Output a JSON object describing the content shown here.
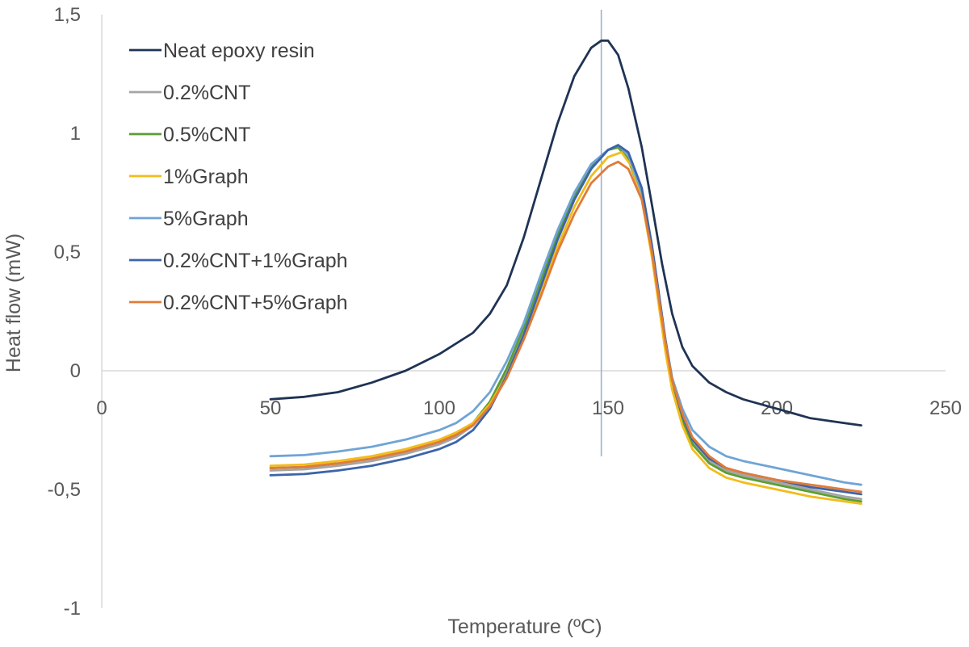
{
  "chart_data": {
    "type": "line",
    "title": "",
    "xlabel": "Temperature (ºC)",
    "ylabel": "Heat flow (mW)",
    "xlim": [
      0,
      250
    ],
    "ylim": [
      -1,
      1.5
    ],
    "x_ticks": [
      0,
      50,
      100,
      150,
      200,
      250
    ],
    "x_tick_labels": [
      "0",
      "50",
      "100",
      "150",
      "200",
      "250"
    ],
    "y_ticks": [
      1.5,
      1,
      0.5,
      0,
      -0.5,
      -1
    ],
    "y_tick_labels": [
      "1,5",
      "1",
      "0,5",
      "0",
      "-0,5",
      "-1"
    ],
    "grid": false,
    "legend_position": "top-left",
    "reference_line_x": 148,
    "series": [
      {
        "name": "Neat epoxy resin",
        "color": "#1f3354",
        "points": [
          [
            50,
            -0.12
          ],
          [
            60,
            -0.11
          ],
          [
            70,
            -0.09
          ],
          [
            80,
            -0.05
          ],
          [
            90,
            0.0
          ],
          [
            100,
            0.07
          ],
          [
            110,
            0.16
          ],
          [
            115,
            0.24
          ],
          [
            120,
            0.36
          ],
          [
            125,
            0.56
          ],
          [
            130,
            0.8
          ],
          [
            135,
            1.04
          ],
          [
            140,
            1.24
          ],
          [
            145,
            1.36
          ],
          [
            148,
            1.39
          ],
          [
            150,
            1.39
          ],
          [
            153,
            1.33
          ],
          [
            156,
            1.19
          ],
          [
            160,
            0.94
          ],
          [
            163,
            0.7
          ],
          [
            166,
            0.45
          ],
          [
            169,
            0.24
          ],
          [
            172,
            0.1
          ],
          [
            175,
            0.02
          ],
          [
            180,
            -0.05
          ],
          [
            185,
            -0.09
          ],
          [
            190,
            -0.12
          ],
          [
            195,
            -0.14
          ],
          [
            200,
            -0.16
          ],
          [
            205,
            -0.18
          ],
          [
            210,
            -0.2
          ],
          [
            215,
            -0.21
          ],
          [
            220,
            -0.22
          ],
          [
            225,
            -0.23
          ]
        ]
      },
      {
        "name": "0.2%CNT",
        "color": "#a5a5a5",
        "points": [
          [
            50,
            -0.42
          ],
          [
            60,
            -0.415
          ],
          [
            70,
            -0.4
          ],
          [
            80,
            -0.38
          ],
          [
            90,
            -0.35
          ],
          [
            100,
            -0.31
          ],
          [
            105,
            -0.28
          ],
          [
            110,
            -0.23
          ],
          [
            115,
            -0.14
          ],
          [
            120,
            0.0
          ],
          [
            125,
            0.17
          ],
          [
            130,
            0.36
          ],
          [
            135,
            0.55
          ],
          [
            140,
            0.72
          ],
          [
            145,
            0.85
          ],
          [
            150,
            0.93
          ],
          [
            153,
            0.95
          ],
          [
            156,
            0.9
          ],
          [
            160,
            0.74
          ],
          [
            163,
            0.5
          ],
          [
            165,
            0.3
          ],
          [
            167,
            0.1
          ],
          [
            169,
            -0.06
          ],
          [
            172,
            -0.2
          ],
          [
            175,
            -0.3
          ],
          [
            180,
            -0.38
          ],
          [
            185,
            -0.42
          ],
          [
            190,
            -0.44
          ],
          [
            200,
            -0.47
          ],
          [
            210,
            -0.5
          ],
          [
            220,
            -0.53
          ],
          [
            225,
            -0.54
          ]
        ]
      },
      {
        "name": "0.5%CNT",
        "color": "#5b9e34",
        "points": [
          [
            50,
            -0.41
          ],
          [
            60,
            -0.405
          ],
          [
            70,
            -0.39
          ],
          [
            80,
            -0.37
          ],
          [
            90,
            -0.34
          ],
          [
            100,
            -0.3
          ],
          [
            105,
            -0.27
          ],
          [
            110,
            -0.22
          ],
          [
            115,
            -0.13
          ],
          [
            120,
            0.01
          ],
          [
            125,
            0.18
          ],
          [
            130,
            0.38
          ],
          [
            135,
            0.57
          ],
          [
            140,
            0.74
          ],
          [
            145,
            0.86
          ],
          [
            150,
            0.93
          ],
          [
            153,
            0.94
          ],
          [
            156,
            0.89
          ],
          [
            160,
            0.73
          ],
          [
            163,
            0.49
          ],
          [
            165,
            0.29
          ],
          [
            167,
            0.09
          ],
          [
            169,
            -0.07
          ],
          [
            172,
            -0.21
          ],
          [
            175,
            -0.31
          ],
          [
            180,
            -0.39
          ],
          [
            185,
            -0.43
          ],
          [
            190,
            -0.45
          ],
          [
            200,
            -0.48
          ],
          [
            210,
            -0.51
          ],
          [
            220,
            -0.54
          ],
          [
            225,
            -0.55
          ]
        ]
      },
      {
        "name": "1%Graph",
        "color": "#f2bc1b",
        "points": [
          [
            50,
            -0.4
          ],
          [
            60,
            -0.395
          ],
          [
            70,
            -0.38
          ],
          [
            80,
            -0.36
          ],
          [
            90,
            -0.33
          ],
          [
            100,
            -0.29
          ],
          [
            105,
            -0.26
          ],
          [
            110,
            -0.22
          ],
          [
            115,
            -0.14
          ],
          [
            120,
            -0.02
          ],
          [
            125,
            0.14
          ],
          [
            130,
            0.33
          ],
          [
            135,
            0.52
          ],
          [
            140,
            0.69
          ],
          [
            145,
            0.82
          ],
          [
            150,
            0.9
          ],
          [
            154,
            0.92
          ],
          [
            157,
            0.86
          ],
          [
            160,
            0.72
          ],
          [
            163,
            0.48
          ],
          [
            165,
            0.28
          ],
          [
            167,
            0.08
          ],
          [
            169,
            -0.08
          ],
          [
            172,
            -0.23
          ],
          [
            175,
            -0.33
          ],
          [
            180,
            -0.41
          ],
          [
            185,
            -0.45
          ],
          [
            190,
            -0.47
          ],
          [
            200,
            -0.5
          ],
          [
            210,
            -0.53
          ],
          [
            220,
            -0.55
          ],
          [
            225,
            -0.56
          ]
        ]
      },
      {
        "name": "5%Graph",
        "color": "#6fa4d6",
        "points": [
          [
            50,
            -0.36
          ],
          [
            60,
            -0.355
          ],
          [
            70,
            -0.34
          ],
          [
            80,
            -0.32
          ],
          [
            90,
            -0.29
          ],
          [
            100,
            -0.25
          ],
          [
            105,
            -0.22
          ],
          [
            110,
            -0.17
          ],
          [
            115,
            -0.09
          ],
          [
            120,
            0.04
          ],
          [
            125,
            0.2
          ],
          [
            130,
            0.4
          ],
          [
            135,
            0.59
          ],
          [
            140,
            0.75
          ],
          [
            145,
            0.87
          ],
          [
            150,
            0.93
          ],
          [
            153,
            0.95
          ],
          [
            156,
            0.91
          ],
          [
            160,
            0.75
          ],
          [
            163,
            0.52
          ],
          [
            165,
            0.33
          ],
          [
            167,
            0.13
          ],
          [
            169,
            -0.03
          ],
          [
            172,
            -0.16
          ],
          [
            175,
            -0.25
          ],
          [
            180,
            -0.32
          ],
          [
            185,
            -0.36
          ],
          [
            190,
            -0.38
          ],
          [
            200,
            -0.41
          ],
          [
            210,
            -0.44
          ],
          [
            220,
            -0.47
          ],
          [
            225,
            -0.48
          ]
        ]
      },
      {
        "name": "0.2%CNT+1%Graph",
        "color": "#3d64a8",
        "points": [
          [
            50,
            -0.44
          ],
          [
            60,
            -0.435
          ],
          [
            70,
            -0.42
          ],
          [
            80,
            -0.4
          ],
          [
            90,
            -0.37
          ],
          [
            100,
            -0.33
          ],
          [
            105,
            -0.3
          ],
          [
            110,
            -0.25
          ],
          [
            115,
            -0.16
          ],
          [
            120,
            -0.02
          ],
          [
            125,
            0.15
          ],
          [
            130,
            0.35
          ],
          [
            135,
            0.55
          ],
          [
            140,
            0.72
          ],
          [
            145,
            0.85
          ],
          [
            150,
            0.93
          ],
          [
            153,
            0.95
          ],
          [
            156,
            0.92
          ],
          [
            160,
            0.77
          ],
          [
            163,
            0.53
          ],
          [
            165,
            0.33
          ],
          [
            167,
            0.13
          ],
          [
            169,
            -0.04
          ],
          [
            172,
            -0.19
          ],
          [
            175,
            -0.29
          ],
          [
            180,
            -0.37
          ],
          [
            185,
            -0.41
          ],
          [
            190,
            -0.43
          ],
          [
            200,
            -0.46
          ],
          [
            210,
            -0.49
          ],
          [
            220,
            -0.51
          ],
          [
            225,
            -0.52
          ]
        ]
      },
      {
        "name": "0.2%CNT+5%Graph",
        "color": "#e07b39",
        "points": [
          [
            50,
            -0.41
          ],
          [
            60,
            -0.405
          ],
          [
            70,
            -0.39
          ],
          [
            80,
            -0.37
          ],
          [
            90,
            -0.34
          ],
          [
            100,
            -0.3
          ],
          [
            105,
            -0.27
          ],
          [
            110,
            -0.23
          ],
          [
            115,
            -0.15
          ],
          [
            120,
            -0.03
          ],
          [
            125,
            0.13
          ],
          [
            130,
            0.31
          ],
          [
            135,
            0.5
          ],
          [
            140,
            0.66
          ],
          [
            145,
            0.79
          ],
          [
            150,
            0.86
          ],
          [
            153,
            0.88
          ],
          [
            156,
            0.85
          ],
          [
            160,
            0.72
          ],
          [
            163,
            0.5
          ],
          [
            165,
            0.31
          ],
          [
            167,
            0.12
          ],
          [
            169,
            -0.04
          ],
          [
            172,
            -0.18
          ],
          [
            175,
            -0.28
          ],
          [
            180,
            -0.36
          ],
          [
            185,
            -0.41
          ],
          [
            190,
            -0.43
          ],
          [
            200,
            -0.46
          ],
          [
            210,
            -0.48
          ],
          [
            220,
            -0.5
          ],
          [
            225,
            -0.51
          ]
        ]
      }
    ]
  }
}
